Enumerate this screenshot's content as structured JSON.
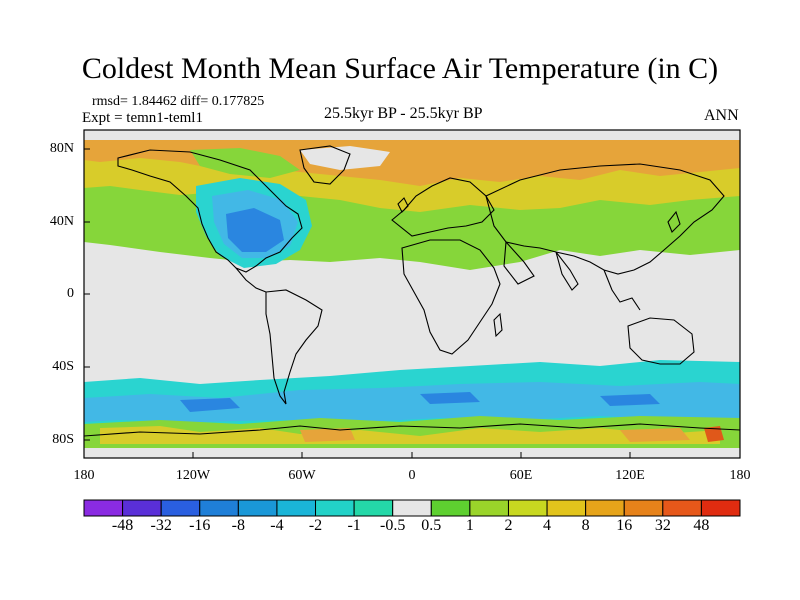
{
  "title": "Coldest Month Mean Surface Air Temperature (in C)",
  "stats_line": "rmsd= 1.84462 diff= 0.177825",
  "expt_line": "Expt = temn1-teml1",
  "center_label": "25.5kyr BP - 25.5kyr BP",
  "season_label": "ANN",
  "map": {
    "lat_labels": [
      "80N",
      "40N",
      "0",
      "40S",
      "80S"
    ],
    "lon_labels": [
      "180",
      "120W",
      "60W",
      "0",
      "60E",
      "120E",
      "180"
    ],
    "lat_range": [
      -90,
      90
    ],
    "lon_range": [
      -180,
      180
    ]
  },
  "colorbar": {
    "labels": [
      "-48",
      "-32",
      "-16",
      "-8",
      "-4",
      "-2",
      "-1",
      "-0.5",
      "0.5",
      "1",
      "2",
      "4",
      "8",
      "16",
      "32",
      "48"
    ],
    "colors": [
      "#8a2be2",
      "#5a2fd8",
      "#2a5fe0",
      "#1f7fd8",
      "#1a98d8",
      "#1ab5d8",
      "#22d2c8",
      "#24d8a8",
      "#e6e6e6",
      "#5ed030",
      "#9ad42a",
      "#c8d820",
      "#e2c41c",
      "#e6a41a",
      "#e6821a",
      "#e6581a",
      "#e02c10"
    ]
  },
  "colors": {
    "neutral": "#e6e6e6",
    "green": "#86d63a",
    "yellow": "#d8cc2a",
    "orange": "#e6a43a",
    "cyan": "#2ad4d0",
    "lightblue": "#42b8e6",
    "blue": "#2a86e0"
  }
}
